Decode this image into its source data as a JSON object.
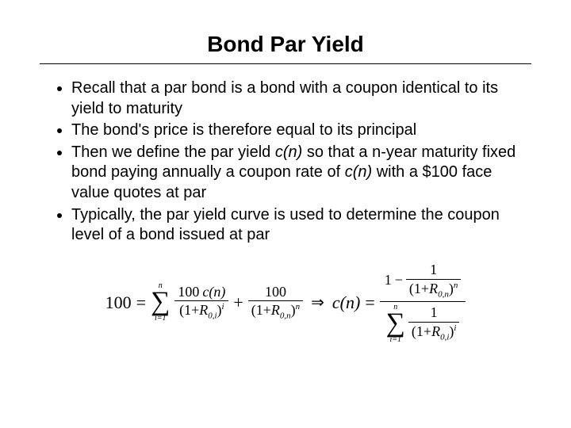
{
  "title": "Bond Par Yield",
  "bullets": [
    {
      "pre": "Recall that a par bond is a bond with a coupon identical to its yield to maturity"
    },
    {
      "pre": "The bond's price is therefore equal to its principal"
    },
    {
      "pre": "Then we define the par yield ",
      "ital1": "c(n)",
      "mid": " so that a n-year maturity fixed bond paying annually a coupon rate of ",
      "ital2": "c(n)",
      "post": " with a $100 face value quotes at par"
    },
    {
      "pre": "Typically, the par yield curve is used to determine the coupon level of a bond issued at par"
    }
  ],
  "formula": {
    "lhs": "100",
    "face": "100",
    "coupon_fn": "c(n)",
    "rate_base": "R",
    "rate_sub": "0,",
    "idx": "i",
    "n": "n",
    "one": "1",
    "eq": "=",
    "plus": "+",
    "minus": "−",
    "implies": "⇒",
    "sum_lower": "i=1"
  },
  "colors": {
    "text": "#000000",
    "bg": "#ffffff"
  },
  "fonts": {
    "body": "Arial",
    "math": "Times New Roman",
    "title_size_pt": 28,
    "body_size_pt": 20,
    "math_size_pt": 18
  }
}
